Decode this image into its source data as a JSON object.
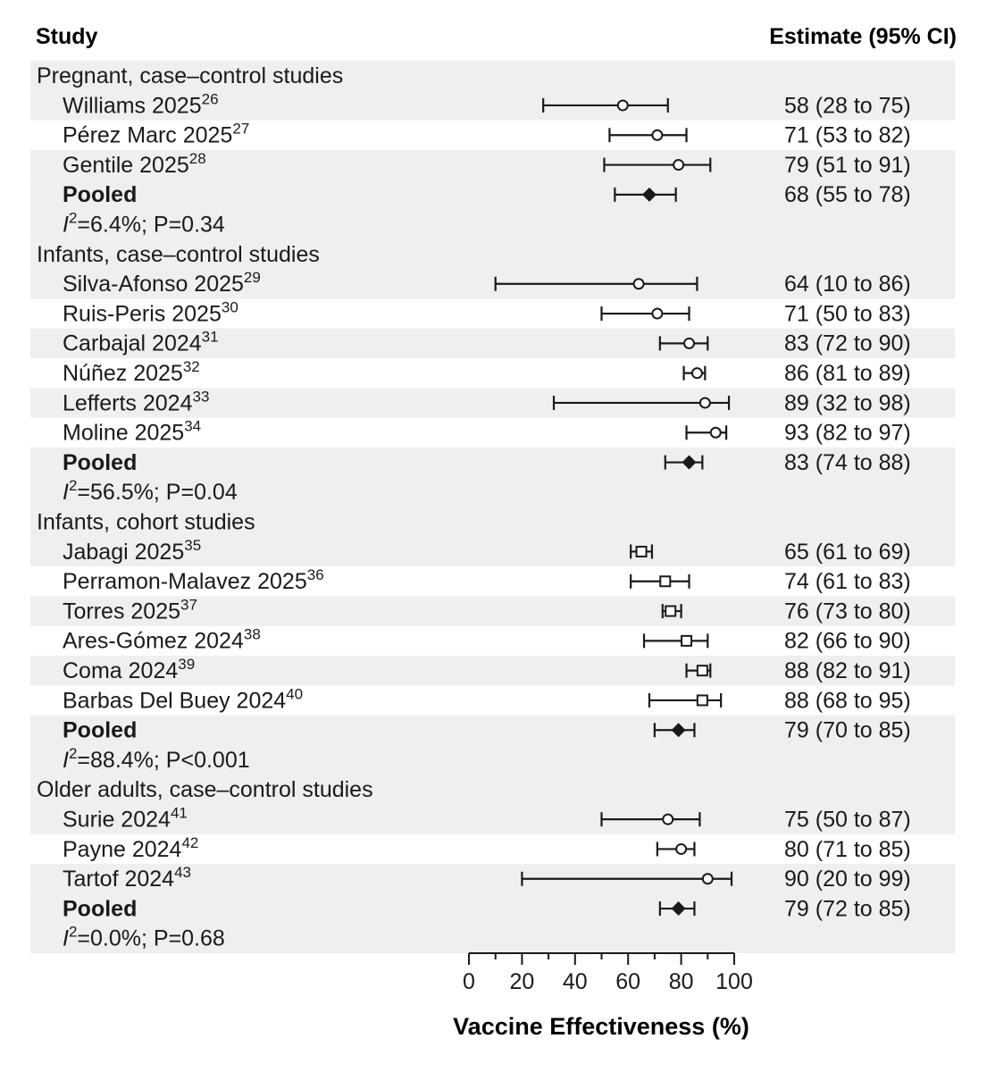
{
  "headers": {
    "study": "Study",
    "estimate": "Estimate (95% CI)"
  },
  "axis": {
    "title": "Vaccine Effectiveness (%)",
    "ticks": [
      "0",
      "20",
      "40",
      "60",
      "80",
      "100"
    ]
  },
  "chart_data": {
    "type": "forest",
    "xlabel": "Vaccine Effectiveness (%)",
    "xlim": [
      0,
      100
    ],
    "xticks": [
      0,
      20,
      40,
      60,
      80,
      100
    ],
    "groups": [
      {
        "title": "Pregnant, case–control studies",
        "marker": "circle",
        "studies": [
          {
            "author": "Williams 2025",
            "ref": "26",
            "est": 58,
            "lo": 28,
            "hi": 75,
            "text": "58 (28 to 75)"
          },
          {
            "author": "Pérez Marc 2025",
            "ref": "27",
            "est": 71,
            "lo": 53,
            "hi": 82,
            "text": "71 (53 to 82)"
          },
          {
            "author": "Gentile 2025",
            "ref": "28",
            "est": 79,
            "lo": 51,
            "hi": 91,
            "text": "79 (51 to 91)"
          }
        ],
        "pooled": {
          "label": "Pooled",
          "est": 68,
          "lo": 55,
          "hi": 78,
          "text": "68 (55 to 78)"
        },
        "stat_rest": "=6.4%; P=0.34"
      },
      {
        "title": "Infants, case–control studies",
        "marker": "circle",
        "studies": [
          {
            "author": "Silva-Afonso 2025",
            "ref": "29",
            "est": 64,
            "lo": 10,
            "hi": 86,
            "text": "64 (10 to 86)"
          },
          {
            "author": "Ruis-Peris 2025",
            "ref": "30",
            "est": 71,
            "lo": 50,
            "hi": 83,
            "text": "71 (50 to 83)"
          },
          {
            "author": "Carbajal 2024",
            "ref": "31",
            "est": 83,
            "lo": 72,
            "hi": 90,
            "text": "83 (72 to 90)"
          },
          {
            "author": "Núñez 2025",
            "ref": "32",
            "est": 86,
            "lo": 81,
            "hi": 89,
            "text": "86 (81 to 89)"
          },
          {
            "author": "Lefferts 2024",
            "ref": "33",
            "est": 89,
            "lo": 32,
            "hi": 98,
            "text": "89 (32 to 98)"
          },
          {
            "author": "Moline 2025",
            "ref": "34",
            "est": 93,
            "lo": 82,
            "hi": 97,
            "text": "93 (82 to 97)"
          }
        ],
        "pooled": {
          "label": "Pooled",
          "est": 83,
          "lo": 74,
          "hi": 88,
          "text": "83 (74 to 88)"
        },
        "stat_rest": "=56.5%; P=0.04"
      },
      {
        "title": "Infants, cohort studies",
        "marker": "square",
        "studies": [
          {
            "author": "Jabagi 2025",
            "ref": "35",
            "est": 65,
            "lo": 61,
            "hi": 69,
            "text": "65 (61 to 69)"
          },
          {
            "author": "Perramon-Malavez 2025",
            "ref": "36",
            "est": 74,
            "lo": 61,
            "hi": 83,
            "text": "74 (61 to 83)"
          },
          {
            "author": "Torres 2025",
            "ref": "37",
            "est": 76,
            "lo": 73,
            "hi": 80,
            "text": "76 (73 to 80)"
          },
          {
            "author": "Ares-Gómez 2024",
            "ref": "38",
            "est": 82,
            "lo": 66,
            "hi": 90,
            "text": "82 (66 to 90)"
          },
          {
            "author": "Coma 2024",
            "ref": "39",
            "est": 88,
            "lo": 82,
            "hi": 91,
            "text": "88 (82 to 91)"
          },
          {
            "author": "Barbas Del Buey 2024",
            "ref": "40",
            "est": 88,
            "lo": 68,
            "hi": 95,
            "text": "88 (68 to 95)"
          }
        ],
        "pooled": {
          "label": "Pooled",
          "est": 79,
          "lo": 70,
          "hi": 85,
          "text": "79 (70 to 85)"
        },
        "stat_rest": "=88.4%; P<0.001"
      },
      {
        "title": "Older adults, case–control studies",
        "marker": "circle",
        "studies": [
          {
            "author": "Surie 2024",
            "ref": "41",
            "est": 75,
            "lo": 50,
            "hi": 87,
            "text": "75 (50 to 87)"
          },
          {
            "author": "Payne 2024",
            "ref": "42",
            "est": 80,
            "lo": 71,
            "hi": 85,
            "text": "80 (71 to 85)"
          },
          {
            "author": "Tartof 2024",
            "ref": "43",
            "est": 90,
            "lo": 20,
            "hi": 99,
            "text": "90 (20 to 99)"
          }
        ],
        "pooled": {
          "label": "Pooled",
          "est": 79,
          "lo": 72,
          "hi": 85,
          "text": "79 (72 to 85)"
        },
        "stat_rest": "=0.0%; P=0.68"
      }
    ]
  },
  "colors": {
    "band": "#efefef",
    "ink": "#1a1a1a",
    "background": "#ffffff"
  }
}
